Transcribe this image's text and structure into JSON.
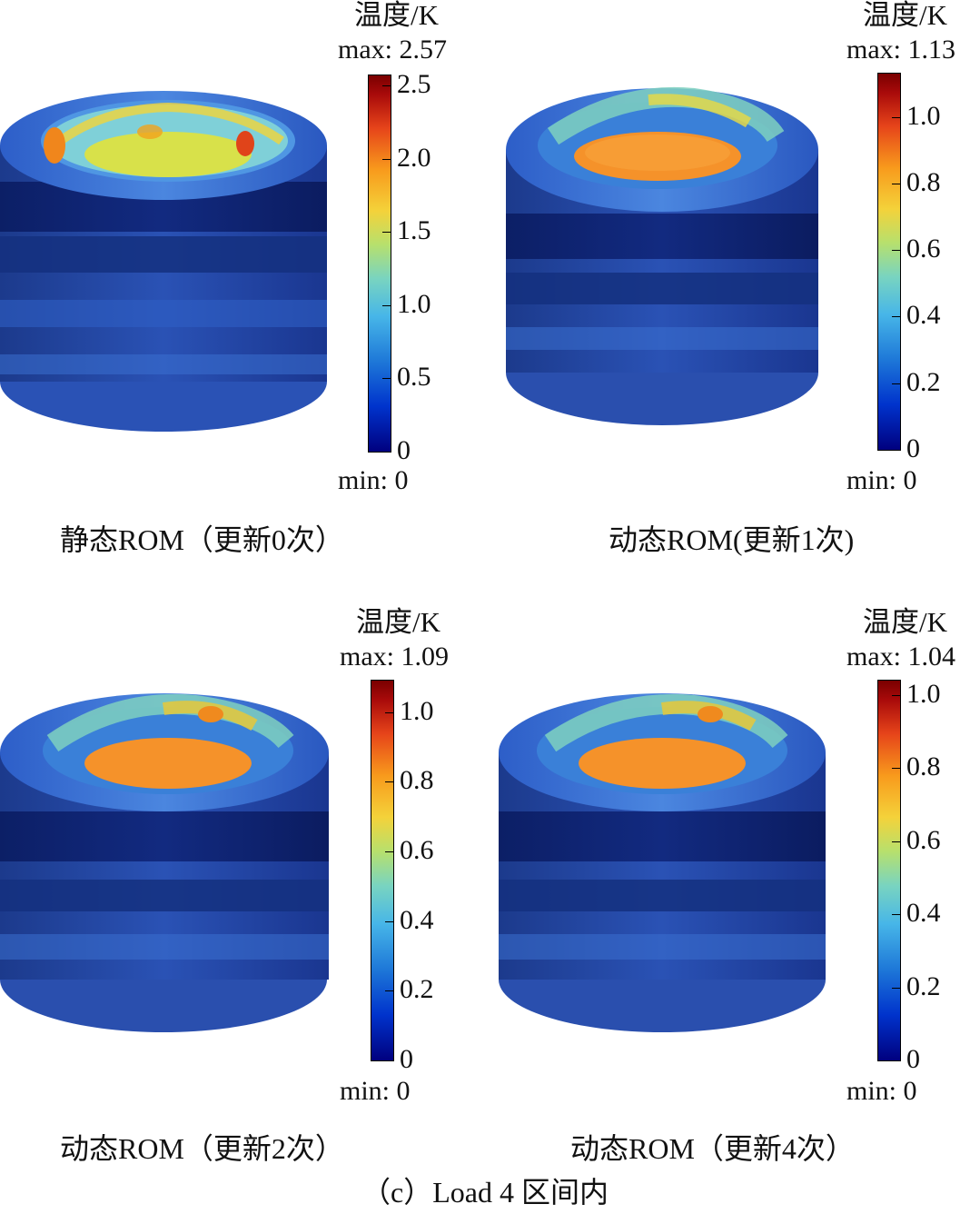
{
  "panels": [
    {
      "colorbar_title": "温度/K",
      "max_label": "max: 2.57",
      "min_label": "min: 0",
      "ticks": [
        "0",
        "0.5",
        "1.0",
        "1.5",
        "2.0",
        "2.5"
      ],
      "tick_values": [
        0,
        0.5,
        1.0,
        1.5,
        2.0,
        2.5
      ],
      "range": [
        0,
        2.57
      ],
      "caption": "静态ROM（更新0次）"
    },
    {
      "colorbar_title": "温度/K",
      "max_label": "max: 1.13",
      "min_label": "min: 0",
      "ticks": [
        "0",
        "0.2",
        "0.4",
        "0.6",
        "0.8",
        "1.0"
      ],
      "tick_values": [
        0,
        0.2,
        0.4,
        0.6,
        0.8,
        1.0
      ],
      "range": [
        0,
        1.13
      ],
      "caption": "动态ROM(更新1次)"
    },
    {
      "colorbar_title": "温度/K",
      "max_label": "max: 1.09",
      "min_label": "min: 0",
      "ticks": [
        "0",
        "0.2",
        "0.4",
        "0.6",
        "0.8",
        "1.0"
      ],
      "tick_values": [
        0,
        0.2,
        0.4,
        0.6,
        0.8,
        1.0
      ],
      "range": [
        0,
        1.09
      ],
      "caption": "动态ROM（更新2次）"
    },
    {
      "colorbar_title": "温度/K",
      "max_label": "max: 1.04",
      "min_label": "min: 0",
      "ticks": [
        "0",
        "0.2",
        "0.4",
        "0.6",
        "0.8",
        "1.0"
      ],
      "tick_values": [
        0,
        0.2,
        0.4,
        0.6,
        0.8,
        1.0
      ],
      "range": [
        0,
        1.04
      ],
      "caption": "动态ROM（更新4次）"
    }
  ],
  "figure_caption": "（c）Load 4 区间内"
}
